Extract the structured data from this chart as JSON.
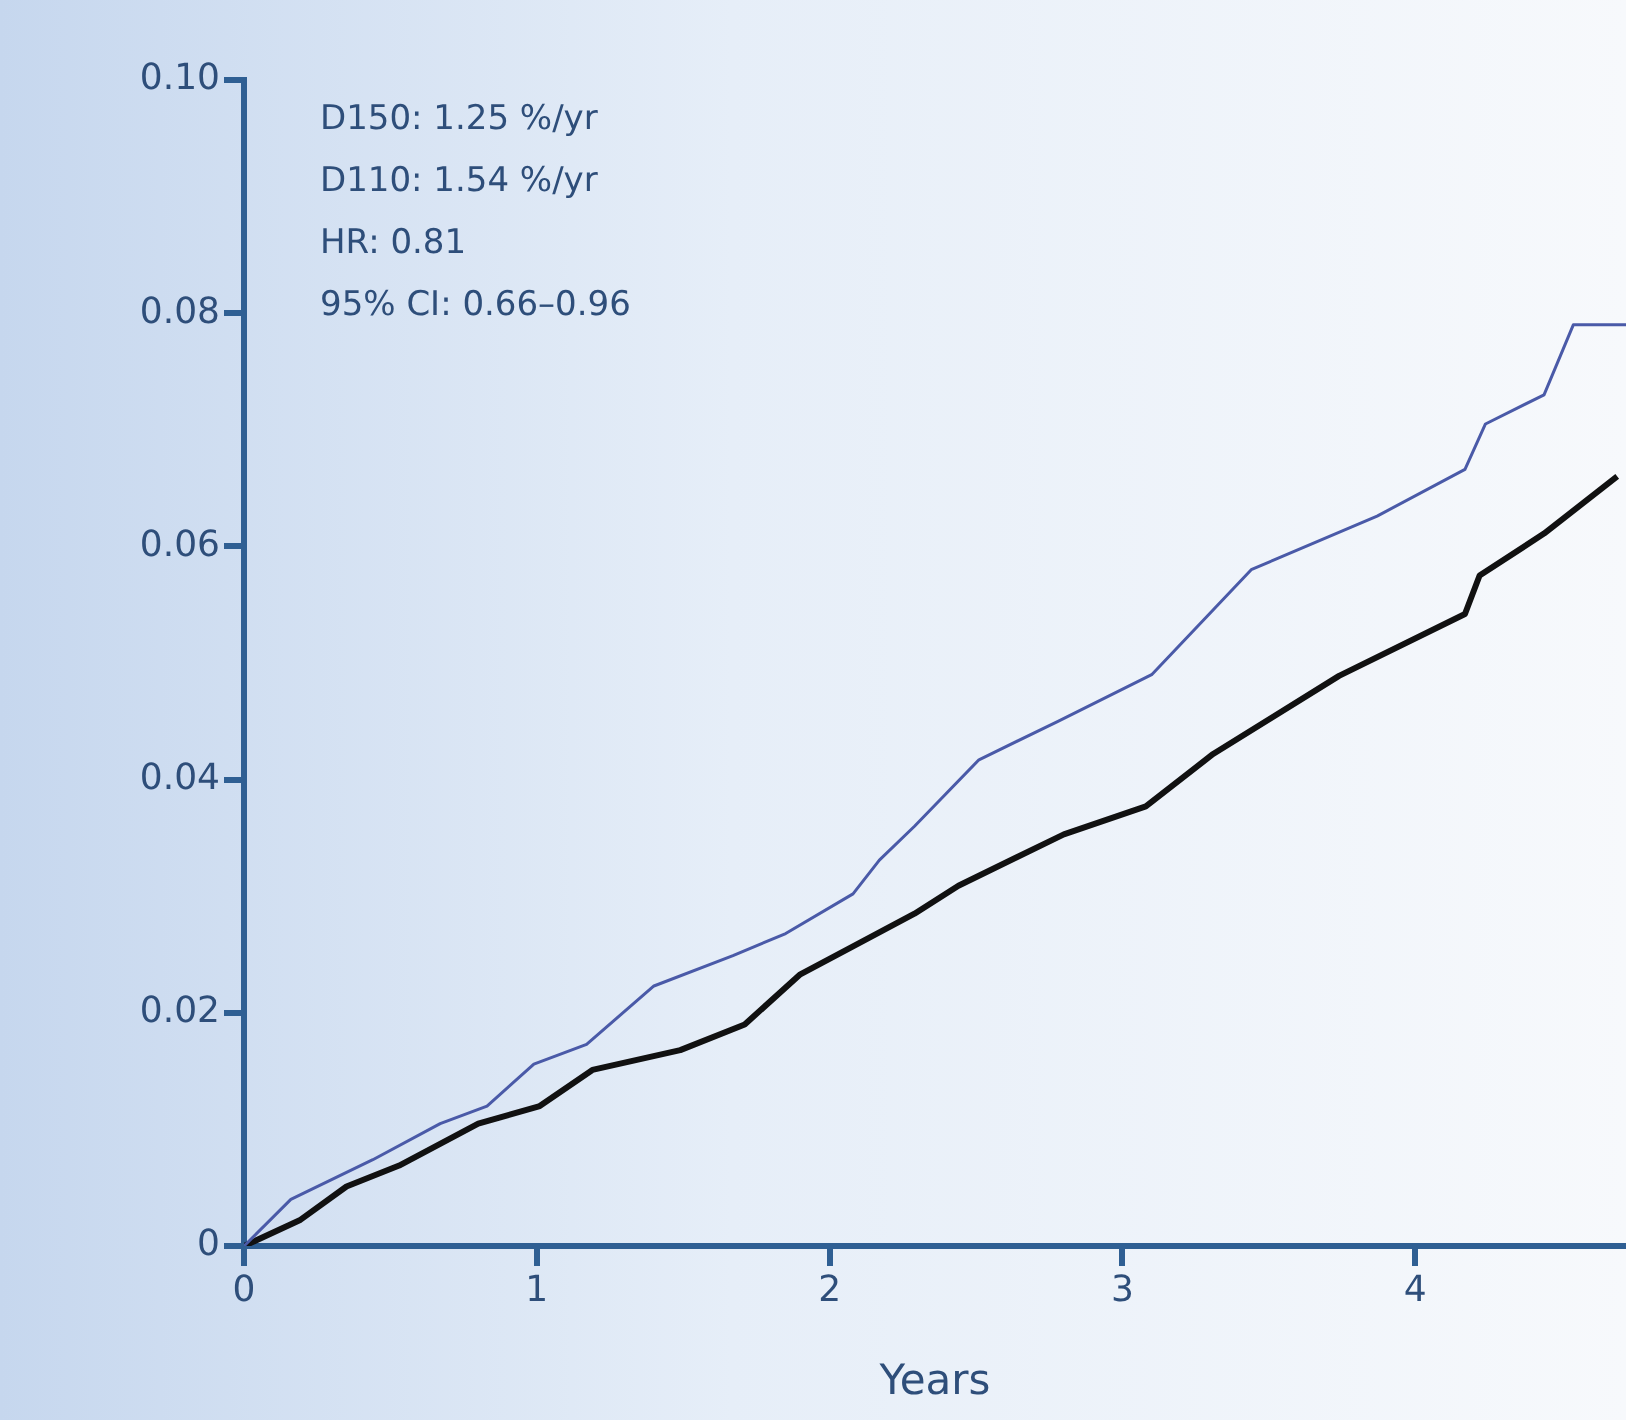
{
  "chart_data": {
    "type": "line",
    "xlabel": "Years",
    "xlim": [
      0,
      4.72
    ],
    "xticks": [
      0,
      1,
      2,
      3,
      4
    ],
    "ylim": [
      0,
      0.1
    ],
    "yticks": [
      0,
      0.02,
      0.04,
      0.06,
      0.08,
      {
        "value": 0.1,
        "label": "0.10"
      }
    ],
    "grid": false,
    "legend": false,
    "marker": "none",
    "line_style": "solid",
    "annotations": [
      "D150: 1.25 %/yr",
      "D110: 1.54 %/yr",
      "HR: 0.81",
      "95% CI: 0.66–0.96"
    ],
    "series": [
      {
        "color": "#4a5aa8",
        "x": [
          0,
          0.16,
          0.44,
          0.67,
          0.83,
          0.99,
          1.17,
          1.4,
          1.67,
          1.85,
          2.08,
          2.17,
          2.29,
          2.51,
          2.78,
          3.1,
          3.44,
          3.87,
          4.17,
          4.24,
          4.44,
          4.54,
          4.72
        ],
        "values": [
          0,
          0.004,
          0.0074,
          0.0105,
          0.012,
          0.0156,
          0.0173,
          0.0223,
          0.0249,
          0.0268,
          0.0302,
          0.0331,
          0.036,
          0.0417,
          0.045,
          0.049,
          0.058,
          0.0626,
          0.0666,
          0.0705,
          0.073,
          0.079,
          0.079
        ]
      },
      {
        "color": "#111111",
        "x": [
          0,
          0.19,
          0.35,
          0.53,
          0.8,
          1.01,
          1.19,
          1.49,
          1.71,
          1.9,
          2.08,
          2.29,
          2.44,
          2.8,
          3.08,
          3.31,
          3.74,
          4.17,
          4.22,
          4.44,
          4.69
        ],
        "values": [
          0,
          0.0022,
          0.0051,
          0.0069,
          0.0105,
          0.012,
          0.0151,
          0.0168,
          0.019,
          0.0233,
          0.0257,
          0.0285,
          0.0309,
          0.0353,
          0.0377,
          0.0422,
          0.0489,
          0.0542,
          0.0575,
          0.0611,
          0.066
        ]
      }
    ]
  }
}
